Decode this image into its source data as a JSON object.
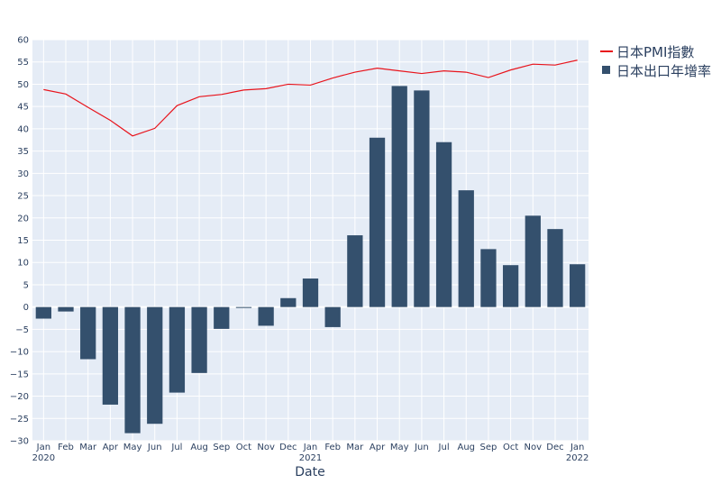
{
  "chart_data": {
    "type": "bar",
    "xlabel": "Date",
    "ylabel": "",
    "ylim": [
      -30,
      60
    ],
    "yticks": [
      -30,
      -25,
      -20,
      -15,
      -10,
      -5,
      0,
      5,
      10,
      15,
      20,
      25,
      30,
      35,
      40,
      45,
      50,
      55,
      60
    ],
    "grid": true,
    "legend_position": "top-right",
    "categories": [
      "Jan 2020",
      "Feb 2020",
      "Mar 2020",
      "Apr 2020",
      "May 2020",
      "Jun 2020",
      "Jul 2020",
      "Aug 2020",
      "Sep 2020",
      "Oct 2020",
      "Nov 2020",
      "Dec 2020",
      "Jan 2021",
      "Feb 2021",
      "Mar 2021",
      "Apr 2021",
      "May 2021",
      "Jun 2021",
      "Jul 2021",
      "Aug 2021",
      "Sep 2021",
      "Oct 2021",
      "Nov 2021",
      "Dec 2021",
      "Jan 2022"
    ],
    "tick_month_labels": [
      "Jan",
      "Feb",
      "Mar",
      "Apr",
      "May",
      "Jun",
      "Jul",
      "Aug",
      "Sep",
      "Oct",
      "Nov",
      "Dec",
      "Jan",
      "Feb",
      "Mar",
      "Apr",
      "May",
      "Jun",
      "Jul",
      "Aug",
      "Sep",
      "Oct",
      "Nov",
      "Dec",
      "Jan"
    ],
    "tick_year_labels": {
      "0": "2020",
      "12": "2021",
      "24": "2022"
    },
    "series": [
      {
        "name": "日本PMI指數",
        "kind": "line",
        "color": "#e8141c",
        "values": [
          48.8,
          47.8,
          44.8,
          41.9,
          38.4,
          40.1,
          45.2,
          47.2,
          47.7,
          48.7,
          49.0,
          50.0,
          49.8,
          51.4,
          52.7,
          53.6,
          53.0,
          52.4,
          53.0,
          52.7,
          51.5,
          53.2,
          54.5,
          54.3,
          55.4
        ]
      },
      {
        "name": "日本出口年增率",
        "kind": "bar",
        "color": "#34506d",
        "values": [
          -2.6,
          -1.0,
          -11.7,
          -21.9,
          -28.3,
          -26.2,
          -19.2,
          -14.8,
          -4.9,
          -0.2,
          -4.2,
          2.0,
          6.4,
          -4.5,
          16.1,
          38.0,
          49.6,
          48.6,
          37.0,
          26.2,
          13.0,
          9.4,
          20.5,
          17.5,
          9.6
        ]
      }
    ]
  }
}
